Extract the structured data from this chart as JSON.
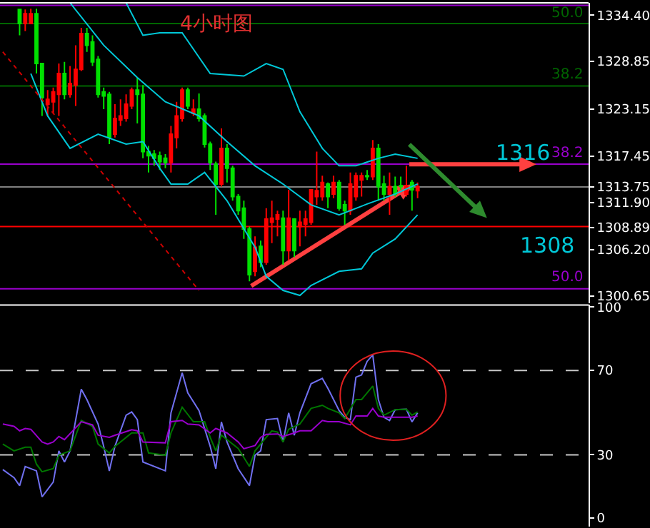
{
  "chart_data": [
    {
      "type": "candlestick",
      "title": "4小时图",
      "categories": [
        null,
        null,
        null,
        null,
        null,
        null,
        null,
        null,
        null,
        null,
        null,
        null,
        null,
        null,
        null,
        null,
        null,
        null,
        null,
        null,
        null,
        null,
        null,
        null,
        null,
        null,
        null,
        null,
        null,
        null,
        null,
        null,
        null,
        null,
        null,
        null,
        null,
        null,
        null,
        null,
        null,
        null,
        null,
        null,
        null,
        null,
        null,
        null,
        null,
        null,
        null,
        null,
        null,
        null,
        null,
        null,
        null,
        null,
        null,
        null,
        null,
        null,
        null,
        null,
        null,
        null,
        null,
        null,
        null,
        null,
        null,
        null,
        null,
        null,
        null,
        null,
        null,
        null,
        null,
        null,
        null,
        null,
        null,
        null,
        null,
        null,
        null,
        null,
        null,
        null,
        null,
        null,
        null,
        null,
        null,
        null,
        null,
        null,
        null,
        null,
        null,
        null,
        null,
        null,
        null
      ],
      "ohlc": [
        null,
        null,
        null,
        [
          1335.1,
          1335.2,
          1332.0,
          1333.4
        ],
        [
          1333.4,
          1335.1,
          1332.5,
          1334.6
        ],
        [
          1333.4,
          1335.2,
          1333.4,
          1334.6
        ],
        [
          1334.6,
          1335.2,
          1327.4,
          1328.6
        ],
        [
          1328.6,
          1328.6,
          1322.3,
          1324.5
        ],
        [
          1323.7,
          1325.4,
          1322.3,
          1324.3
        ],
        [
          1324.0,
          1325.7,
          1322.6,
          1325.2
        ],
        [
          1324.9,
          1328.6,
          1322.3,
          1327.4
        ],
        [
          1327.4,
          1328.8,
          1324.3,
          1324.9
        ],
        [
          1324.9,
          1328.3,
          1324.5,
          1326.2
        ],
        [
          1326.0,
          1330.8,
          1323.5,
          1327.9
        ],
        [
          1327.9,
          1332.9,
          1327.7,
          1332.2
        ],
        [
          1332.2,
          1332.9,
          1330.0,
          1330.8
        ],
        [
          1331.2,
          1332.0,
          1328.3,
          1328.8
        ],
        [
          1329.1,
          1329.5,
          1324.5,
          1324.9
        ],
        [
          1325.2,
          1325.7,
          1323.1,
          1324.7
        ],
        [
          1324.9,
          1325.2,
          1318.9,
          1319.7
        ],
        [
          1320.1,
          1323.7,
          1319.7,
          1322.0
        ],
        [
          1321.8,
          1324.3,
          1321.1,
          1322.3
        ],
        [
          1322.0,
          1324.9,
          1321.6,
          1323.7
        ],
        [
          1323.5,
          1325.7,
          1323.1,
          1325.4
        ],
        [
          1325.4,
          1326.9,
          1321.4,
          1324.9
        ],
        [
          1324.9,
          1326.0,
          1317.2,
          1318.0
        ],
        [
          1318.0,
          1318.7,
          1315.5,
          1317.5
        ],
        [
          1317.7,
          1318.2,
          1316.3,
          1317.2
        ],
        [
          1317.5,
          1318.0,
          1315.8,
          1316.8
        ],
        [
          1317.2,
          1317.7,
          1316.0,
          1316.7
        ],
        [
          1316.7,
          1321.1,
          1315.5,
          1320.1
        ],
        [
          1319.7,
          1324.0,
          1318.4,
          1322.3
        ],
        [
          1322.0,
          1325.7,
          1321.6,
          1325.4
        ],
        [
          1325.4,
          1325.7,
          1323.1,
          1323.5
        ],
        [
          1322.6,
          1324.3,
          1322.3,
          1323.1
        ],
        [
          1323.1,
          1325.0,
          1321.6,
          1322.0
        ],
        [
          1322.3,
          1322.6,
          1318.5,
          1318.9
        ],
        [
          1318.9,
          1319.2,
          1315.8,
          1316.7
        ],
        [
          1316.5,
          1316.8,
          1310.4,
          1314.1
        ],
        [
          1314.1,
          1320.8,
          1313.8,
          1318.4
        ],
        [
          1318.4,
          1318.9,
          1314.3,
          1316.0
        ],
        [
          1316.0,
          1316.3,
          1312.1,
          1312.6
        ],
        [
          1312.6,
          1312.9,
          1310.4,
          1310.9
        ],
        [
          1311.2,
          1312.1,
          1307.5,
          1308.7
        ],
        [
          1308.7,
          1309.0,
          1302.4,
          1303.2
        ],
        [
          1303.6,
          1307.8,
          1303.0,
          1306.5
        ],
        [
          1306.6,
          1307.3,
          1304.1,
          1304.7
        ],
        [
          1304.7,
          1311.2,
          1304.4,
          1309.9
        ],
        [
          1309.5,
          1312.1,
          1307.0,
          1310.0
        ],
        [
          1309.9,
          1310.9,
          1307.8,
          1310.4
        ],
        [
          1310.0,
          1310.9,
          1304.4,
          1306.1
        ],
        [
          1306.1,
          1313.4,
          1304.9,
          1310.0
        ],
        [
          1309.9,
          1310.0,
          1305.3,
          1306.1
        ],
        [
          1309.0,
          1310.9,
          1306.6,
          1309.5
        ],
        [
          1309.3,
          1310.9,
          1307.8,
          1309.9
        ],
        [
          1309.5,
          1313.4,
          1309.2,
          1313.4
        ],
        [
          1312.6,
          1318.0,
          1311.6,
          1313.3
        ],
        [
          1312.6,
          1315.1,
          1312.1,
          1314.3
        ],
        [
          1314.1,
          1314.3,
          1311.2,
          1312.6
        ],
        [
          1312.9,
          1315.1,
          1312.4,
          1314.3
        ],
        [
          1314.3,
          1314.6,
          1310.9,
          1311.2
        ],
        [
          1311.6,
          1312.1,
          1309.2,
          1310.9
        ],
        [
          1310.9,
          1315.5,
          1310.4,
          1314.1
        ],
        [
          1312.6,
          1315.5,
          1312.1,
          1315.1
        ],
        [
          1314.6,
          1315.5,
          1312.6,
          1315.1
        ],
        [
          1315.1,
          1315.8,
          1314.6,
          1315.0
        ],
        [
          1315.0,
          1319.4,
          1314.6,
          1318.4
        ],
        [
          1318.4,
          1318.9,
          1312.1,
          1313.8
        ],
        [
          1314.1,
          1315.1,
          1312.1,
          1312.9
        ],
        [
          1312.9,
          1315.5,
          1310.4,
          1313.8
        ],
        [
          1313.8,
          1315.0,
          1312.6,
          1312.9
        ],
        [
          1313.9,
          1315.0,
          1313.4,
          1313.8
        ],
        [
          1312.9,
          1316.3,
          1312.6,
          1313.9
        ],
        [
          1314.3,
          1314.6,
          1310.9,
          1313.4
        ],
        [
          1313.3,
          1314.3,
          1312.4,
          1313.8
        ],
        null,
        null,
        null,
        null,
        null,
        null,
        null,
        null,
        null,
        null,
        null,
        null,
        null,
        null,
        null,
        null,
        null,
        null,
        null,
        null,
        null,
        null,
        null,
        null,
        null,
        null,
        null,
        null,
        null,
        null
      ],
      "colors": [
        null,
        null,
        null,
        "#00e000",
        "#ff0000",
        "#ff0000",
        "#00e000",
        "#00e000",
        "#ff0000",
        "#ff0000",
        "#ff0000",
        "#00e000",
        "#ff0000",
        "#ff0000",
        "#ff0000",
        "#00e000",
        "#00e000",
        "#00e000",
        "#00e000",
        "#00e000",
        "#ff0000",
        "#ff0000",
        "#ff0000",
        "#ff0000",
        "#00e000",
        "#00e000",
        "#00e000",
        "#00e000",
        "#00e000",
        "#00e000",
        "#ff0000",
        "#ff0000",
        "#ff0000",
        "#00e000",
        "#ff0000",
        "#00e000",
        "#00e000",
        "#00e000",
        "#00e000",
        "#ff0000",
        "#00e000",
        "#00e000",
        "#00e000",
        "#00e000",
        "#00e000",
        "#ff0000",
        "#00e000",
        "#ff0000",
        "#ff0000",
        "#ff0000",
        "#00e000",
        "#ff0000",
        "#00e000",
        "#ff0000",
        "#ff0000",
        "#ff0000",
        "#ff0000",
        "#ff0000",
        "#00e000",
        "#ff0000",
        "#00e000",
        "#00e000",
        "#ff0000",
        "#ff0000",
        "#ff0000",
        "#00e000",
        "#ff0000",
        "#00e000",
        "#00e000",
        "#ff0000",
        "#00e000",
        "#00e000",
        "#ff0000",
        "#00e000",
        "#ff0000",
        null,
        null,
        null,
        null,
        null,
        null,
        null,
        null,
        null,
        null,
        null,
        null,
        null,
        null,
        null,
        null,
        null,
        null,
        null,
        null,
        null,
        null,
        null,
        null,
        null,
        null,
        null,
        null,
        null,
        null
      ],
      "series": [
        {
          "type": "line",
          "color": "#00c8d8",
          "values": [
            null,
            null,
            null,
            null,
            null,
            null,
            null,
            null,
            null,
            null,
            null,
            null,
            null,
            null,
            null,
            null,
            null,
            null,
            null,
            null,
            null,
            null,
            1335.9,
            null,
            null,
            1332.0,
            null,
            null,
            1332.3,
            null,
            null,
            null,
            1332.3,
            null,
            null,
            null,
            null,
            1327.4,
            null,
            null,
            null,
            null,
            null,
            1327.1,
            null,
            null,
            null,
            1328.6,
            null,
            null,
            1327.9,
            null,
            null,
            1322.8,
            null,
            null,
            null,
            1318.4,
            null,
            null,
            1316.3,
            null,
            null,
            1316.3,
            null,
            null,
            null,
            1317.2,
            null,
            null,
            1317.7,
            null,
            null,
            null,
            1317.2,
            null,
            null,
            null,
            null,
            null,
            null,
            null,
            null,
            null,
            null,
            null,
            null,
            null,
            null,
            null,
            null,
            null,
            null,
            null,
            null,
            null,
            null,
            null,
            null,
            null,
            null,
            null,
            null,
            null,
            null
          ]
        },
        {
          "type": "line",
          "color": "#00c8d8",
          "values": [
            null,
            null,
            null,
            null,
            null,
            null,
            null,
            null,
            null,
            null,
            null,
            null,
            1335.9,
            null,
            null,
            null,
            null,
            null,
            1330.8,
            null,
            null,
            null,
            null,
            null,
            1326.9,
            null,
            null,
            null,
            null,
            1324.0,
            null,
            null,
            null,
            null,
            null,
            1322.3,
            null,
            null,
            null,
            null,
            1319.2,
            null,
            null,
            null,
            null,
            1316.3,
            null,
            null,
            null,
            null,
            1314.1,
            null,
            null,
            null,
            null,
            1311.6,
            null,
            null,
            null,
            null,
            1310.4,
            null,
            null,
            null,
            null,
            1311.7,
            null,
            null,
            null,
            null,
            1312.9,
            null,
            null,
            null,
            1314.1,
            null,
            null,
            null,
            null,
            null,
            null,
            null,
            null,
            null,
            null,
            null,
            null,
            null,
            null,
            null,
            null,
            null,
            null,
            null,
            null,
            null,
            null,
            null,
            null,
            null,
            null,
            null,
            null,
            null,
            null
          ]
        },
        {
          "type": "line",
          "color": "#00c8d8",
          "values": [
            null,
            null,
            null,
            null,
            null,
            1327.4,
            null,
            null,
            1322.3,
            null,
            null,
            null,
            1318.4,
            null,
            null,
            null,
            null,
            1320.1,
            null,
            null,
            null,
            null,
            1318.9,
            null,
            null,
            1319.2,
            null,
            null,
            1316.0,
            null,
            1314.1,
            null,
            null,
            1314.1,
            null,
            null,
            1315.5,
            null,
            null,
            null,
            1312.1,
            null,
            null,
            null,
            null,
            1306.5,
            null,
            1303.0,
            null,
            null,
            1301.3,
            null,
            null,
            1300.7,
            null,
            1301.9,
            null,
            null,
            null,
            null,
            1303.6,
            null,
            null,
            null,
            1303.9,
            null,
            1305.8,
            null,
            null,
            null,
            1307.5,
            null,
            null,
            null,
            1310.4,
            null,
            null,
            null,
            null,
            null,
            null,
            null,
            null,
            null,
            null,
            null,
            null,
            null,
            null,
            null,
            null,
            null,
            null,
            null,
            null,
            null,
            null,
            null,
            null,
            null,
            null,
            null,
            null,
            null,
            null
          ]
        },
        {
          "type": "line",
          "color": "#cc0000",
          "line_style": "dotted",
          "values": [
            1330.0,
            null,
            null,
            null,
            null,
            null,
            null,
            null,
            null,
            null,
            null,
            null,
            null,
            null,
            null,
            null,
            null,
            null,
            null,
            null,
            null,
            null,
            null,
            null,
            null,
            null,
            null,
            null,
            null,
            null,
            null,
            null,
            null,
            null,
            null,
            1301.3,
            null,
            null,
            null,
            null,
            null,
            null,
            null,
            null,
            null,
            null,
            null,
            null,
            null,
            null,
            null,
            null,
            null,
            null,
            null,
            null,
            null,
            null,
            null,
            null,
            null,
            null,
            null,
            null,
            null,
            null,
            null,
            null,
            null,
            null,
            null,
            null,
            null,
            null,
            null,
            null,
            null,
            null,
            null,
            null,
            null,
            null,
            null,
            null,
            null,
            null,
            null,
            null,
            null,
            null,
            null,
            null,
            null,
            null,
            null,
            null,
            null,
            null,
            null,
            null,
            null,
            null,
            null,
            null,
            null
          ]
        }
      ],
      "ylim": [
        1299.8,
        1335.9
      ],
      "yticks": [
        {
          "value": 1334.4,
          "label": "1334.40"
        },
        1328.85,
        1323.15,
        1317.45,
        1313.75,
        {
          "value": 1311.9,
          "label": "1311.90"
        },
        1308.89,
        {
          "value": 1306.2,
          "label": "1306.20"
        },
        1300.65
      ],
      "ref_lines": [
        {
          "axis": "y",
          "value": 1335.6,
          "color": "#9900cc"
        },
        {
          "axis": "y",
          "value": 1333.4,
          "color": "#006600"
        },
        {
          "axis": "y",
          "value": 1325.9,
          "color": "#006600"
        },
        {
          "axis": "y",
          "value": 1316.5,
          "color": "#9900cc"
        },
        {
          "axis": "y",
          "value": 1313.75,
          "color": "#808080"
        },
        {
          "axis": "y",
          "value": 1309.0,
          "color": "#ff0000"
        },
        {
          "axis": "y",
          "value": 1301.5,
          "color": "#9900cc"
        }
      ],
      "annotations": [
        {
          "text": "50.0",
          "y": 1333.4
        },
        {
          "text": "38.2",
          "y": 1325.9
        },
        {
          "text": "38.2",
          "y": 1316.5
        },
        {
          "text": "50.0",
          "y": 1301.5
        },
        "1316",
        "1308"
      ],
      "tick_labels": "y"
    },
    {
      "type": "line",
      "categories": [
        null,
        null,
        null,
        null,
        null,
        null,
        null,
        null,
        null,
        null,
        null,
        null,
        null,
        null,
        null,
        null,
        null,
        null,
        null,
        null,
        null,
        null,
        null,
        null,
        null,
        null,
        null,
        null,
        null,
        null,
        null,
        null,
        null,
        null,
        null,
        null,
        null,
        null,
        null,
        null,
        null,
        null,
        null,
        null,
        null,
        null,
        null,
        null,
        null,
        null,
        null,
        null,
        null,
        null,
        null,
        null,
        null,
        null,
        null,
        null,
        null,
        null,
        null,
        null,
        null,
        null,
        null,
        null,
        null,
        null,
        null,
        null,
        null,
        null,
        null,
        null,
        null,
        null,
        null,
        null,
        null,
        null,
        null,
        null,
        null,
        null,
        null,
        null,
        null,
        null,
        null,
        null,
        null,
        null,
        null,
        null,
        null,
        null,
        null,
        null,
        null,
        null,
        null,
        null,
        null
      ],
      "series": [
        {
          "color": "#7070f0",
          "values": [
            23.0,
            null,
            19.2,
            15.4,
            24.5,
            null,
            22.4,
            10.1,
            null,
            17.1,
            31.9,
            26.6,
            31.9,
            null,
            61.1,
            56.2,
            null,
            44.6,
            34.0,
            22.4,
            34.0,
            null,
            48.8,
            50.3,
            46.7,
            26.6,
            null,
            null,
            null,
            22.4,
            49.9,
            null,
            68.9,
            59.4,
            null,
            51.0,
            null,
            34.0,
            23.4,
            45.6,
            36.1,
            null,
            23.4,
            null,
            15.4,
            29.8,
            31.9,
            46.7,
            null,
            47.2,
            36.1,
            49.9,
            39.3,
            49.9,
            null,
            63.7,
            null,
            66.2,
            61.5,
            null,
            51.0,
            47.8,
            46.7,
            66.8,
            67.9,
            74.3,
            77.4,
            56.2,
            47.8,
            46.3,
            51.4,
            null,
            51.6,
            45.6,
            49.9,
            null,
            null,
            null,
            null,
            null,
            null,
            null,
            null,
            null,
            null,
            null,
            null,
            null,
            null,
            null,
            null,
            null,
            null,
            null,
            null,
            null,
            null,
            null,
            null,
            null,
            null,
            null,
            null,
            null,
            null
          ]
        },
        {
          "color": "#007700",
          "values": [
            35.1,
            null,
            31.9,
            null,
            33.6,
            33.6,
            25.6,
            22.0,
            null,
            23.5,
            29.8,
            null,
            31.9,
            null,
            46.3,
            null,
            43.5,
            35.1,
            null,
            30.9,
            34.0,
            null,
            null,
            40.4,
            null,
            40.4,
            30.9,
            null,
            null,
            29.8,
            40.4,
            null,
            52.6,
            null,
            45.7,
            null,
            45.7,
            38.3,
            31.9,
            39.3,
            null,
            null,
            33.0,
            null,
            24.5,
            31.9,
            null,
            38.3,
            41.4,
            40.8,
            36.1,
            42.1,
            null,
            44.6,
            null,
            52.0,
            null,
            53.5,
            52.0,
            null,
            49.9,
            47.2,
            null,
            56.2,
            56.2,
            null,
            62.6,
            52.0,
            48.8,
            null,
            51.4,
            null,
            51.6,
            48.8,
            50.3,
            null,
            null,
            null,
            null,
            null,
            null,
            null,
            null,
            null,
            null,
            null,
            null,
            null,
            null,
            null,
            null,
            null,
            null,
            null,
            null,
            null,
            null,
            null,
            null,
            null,
            null,
            null,
            null,
            null,
            null
          ]
        },
        {
          "color": "#9900cc",
          "values": [
            44.6,
            null,
            43.5,
            41.4,
            42.5,
            42.1,
            null,
            36.1,
            35.1,
            36.1,
            38.7,
            37.2,
            null,
            null,
            45.7,
            null,
            44.2,
            39.3,
            null,
            38.3,
            39.3,
            null,
            null,
            41.9,
            41.4,
            36.1,
            null,
            null,
            null,
            35.7,
            45.7,
            null,
            46.3,
            44.6,
            null,
            44.2,
            null,
            40.4,
            42.5,
            null,
            40.4,
            null,
            36.1,
            32.9,
            null,
            34.4,
            38.3,
            39.7,
            null,
            39.9,
            38.7,
            null,
            40.4,
            41.4,
            null,
            41.4,
            null,
            46.3,
            45.7,
            null,
            45.7,
            null,
            44.2,
            48.4,
            null,
            48.4,
            52.0,
            48.4,
            47.8,
            null,
            null,
            47.8,
            null,
            47.8,
            48.4,
            null,
            null,
            null,
            null,
            null,
            null,
            null,
            null,
            null,
            null,
            null,
            null,
            null,
            null,
            null,
            null,
            null,
            null,
            null,
            null,
            null,
            null,
            null,
            null,
            null,
            null,
            null,
            null,
            null,
            null
          ]
        }
      ],
      "ylim": [
        -4,
        101
      ],
      "yticks": [
        0,
        30,
        70,
        100
      ],
      "ref_lines": [
        {
          "axis": "y",
          "value": 70,
          "color": "#c8c8c8",
          "line_style": "dashed"
        },
        {
          "axis": "y",
          "value": 30,
          "color": "#c8c8c8",
          "line_style": "dashed"
        }
      ],
      "tick_labels": "y"
    }
  ]
}
